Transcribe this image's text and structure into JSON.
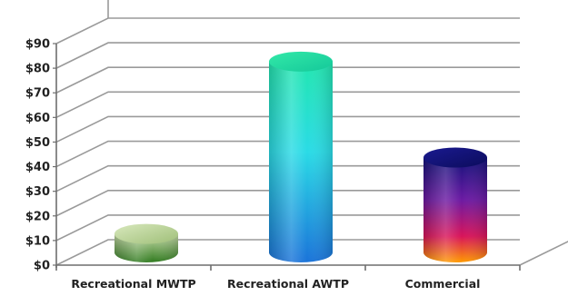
{
  "chart_data": {
    "type": "bar",
    "style": "3d-cylinder",
    "categories": [
      "Recreational MWTP",
      "Recreational AWTP",
      "Commercial"
    ],
    "values": [
      9,
      79,
      40
    ],
    "ylim": [
      0,
      90
    ],
    "yticks": [
      {
        "value": 0,
        "label": "$0"
      },
      {
        "value": 10,
        "label": "$10"
      },
      {
        "value": 20,
        "label": "$20"
      },
      {
        "value": 30,
        "label": "$30"
      },
      {
        "value": 40,
        "label": "$40"
      },
      {
        "value": 50,
        "label": "$50"
      },
      {
        "value": 60,
        "label": "$60"
      },
      {
        "value": 70,
        "label": "$70"
      },
      {
        "value": 80,
        "label": "$80"
      },
      {
        "value": 90,
        "label": "$90"
      }
    ],
    "grid": true,
    "legend": "none",
    "colors": {
      "gridline": "#9a9a9a",
      "wall": "#ffffff",
      "bar_1": [
        "#2f7a1e",
        "#c9dcaa"
      ],
      "bar_2": [
        "#22e6b0",
        "#2adbe6",
        "#1a73d9"
      ],
      "bar_3": [
        "#12127a",
        "#6b1aa3",
        "#d8145a",
        "#ff9a00"
      ]
    }
  }
}
